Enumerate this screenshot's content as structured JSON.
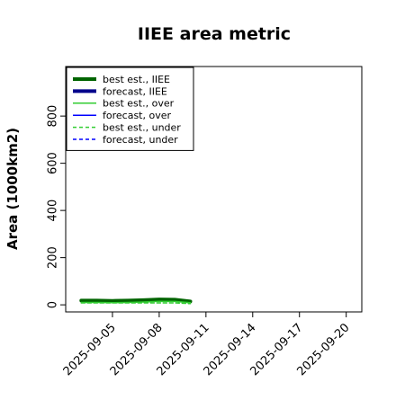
{
  "chart_data": {
    "type": "line",
    "title": "IIEE area metric",
    "xlabel": "",
    "ylabel": "Area (1000km2)",
    "x_ticks": [
      "2025-09-05",
      "2025-09-08",
      "2025-09-11",
      "2025-09-14",
      "2025-09-17",
      "2025-09-20"
    ],
    "x_tick_colors": [
      "#000000",
      "#000000",
      "#228b22",
      "#000000",
      "#000000",
      "#000000"
    ],
    "xlim": [
      "2025-09-02",
      "2025-09-21"
    ],
    "y_ticks": [
      "0",
      "200",
      "400",
      "600",
      "800"
    ],
    "ylim": [
      -30,
      1010
    ],
    "grid": false,
    "legend_position": "top-left",
    "series": [
      {
        "name": "best est., IIEE",
        "color": "#006400",
        "style": "solid-thick",
        "x": [
          "2025-09-03",
          "2025-09-04",
          "2025-09-05",
          "2025-09-06",
          "2025-09-07",
          "2025-09-08",
          "2025-09-09",
          "2025-09-10"
        ],
        "y": [
          18,
          18,
          17,
          18,
          20,
          23,
          22,
          14
        ]
      },
      {
        "name": "forecast, IIEE",
        "color": "#00008b",
        "style": "solid-thick",
        "x": [],
        "y": []
      },
      {
        "name": "best est., over",
        "color": "#32cd32",
        "style": "solid",
        "x": [
          "2025-09-03",
          "2025-09-04",
          "2025-09-05",
          "2025-09-06",
          "2025-09-07",
          "2025-09-08",
          "2025-09-09",
          "2025-09-10"
        ],
        "y": [
          10,
          10,
          9,
          10,
          12,
          15,
          14,
          9
        ]
      },
      {
        "name": "forecast, over",
        "color": "#0000ff",
        "style": "solid",
        "x": [],
        "y": []
      },
      {
        "name": "best est., under",
        "color": "#32cd32",
        "style": "dashed",
        "x": [
          "2025-09-03",
          "2025-09-04",
          "2025-09-05",
          "2025-09-06",
          "2025-09-07",
          "2025-09-08",
          "2025-09-09",
          "2025-09-10"
        ],
        "y": [
          8,
          8,
          8,
          8,
          8,
          8,
          8,
          5
        ]
      },
      {
        "name": "forecast, under",
        "color": "#0000ff",
        "style": "dashed",
        "x": [],
        "y": []
      }
    ]
  }
}
